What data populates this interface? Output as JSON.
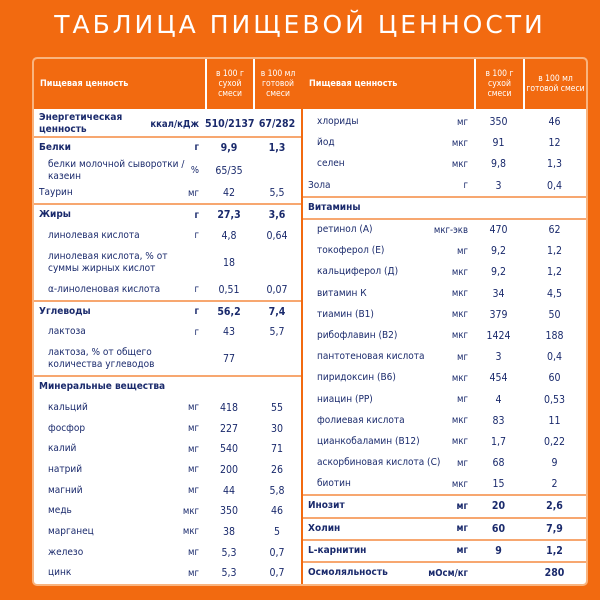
{
  "title": "ТАБЛИЦА ПИЩЕВОЙ ЦЕННОСТИ",
  "header": {
    "name": "Пищевая ценность",
    "col1": "в 100 г сухой смеси",
    "col2": "в 100 мл готовой смеси"
  },
  "colors": {
    "background": "#f26a10",
    "text": "#1a2a6c",
    "separator": "#f7a770"
  },
  "left": [
    {
      "t": "bold",
      "sep": "b",
      "n": "Энергетическая ценность",
      "u": "ккал/кДж",
      "v1": "510/2137",
      "v2": "67/282"
    },
    {
      "t": "bold",
      "n": "Белки",
      "u": "г",
      "v1": "9,9",
      "v2": "1,3"
    },
    {
      "t": "item",
      "n": "белки молочной сыворотки / казеин",
      "u": "%",
      "v1": "65/35",
      "v2": ""
    },
    {
      "t": "plain",
      "sep": "b",
      "n": "Таурин",
      "u": "мг",
      "v1": "42",
      "v2": "5,5"
    },
    {
      "t": "bold",
      "n": "Жиры",
      "u": "г",
      "v1": "27,3",
      "v2": "3,6"
    },
    {
      "t": "item",
      "n": "линолевая кислота",
      "u": "г",
      "v1": "4,8",
      "v2": "0,64"
    },
    {
      "t": "item",
      "dbl": true,
      "n": "линолевая кислота, % от суммы жирных кислот",
      "u": "",
      "v1": "18",
      "v2": ""
    },
    {
      "t": "item",
      "sep": "b",
      "n": "α-линоленовая кислота",
      "u": "г",
      "v1": "0,51",
      "v2": "0,07"
    },
    {
      "t": "bold",
      "n": "Углеводы",
      "u": "г",
      "v1": "56,2",
      "v2": "7,4"
    },
    {
      "t": "item",
      "n": "лактоза",
      "u": "г",
      "v1": "43",
      "v2": "5,7"
    },
    {
      "t": "item",
      "dbl": true,
      "sep": "b",
      "n": "лактоза, % от общего количества углеводов",
      "u": "",
      "v1": "77",
      "v2": ""
    },
    {
      "t": "bold",
      "n": "Минеральные вещества",
      "u": "",
      "v1": "",
      "v2": ""
    },
    {
      "t": "item",
      "n": "кальций",
      "u": "мг",
      "v1": "418",
      "v2": "55"
    },
    {
      "t": "item",
      "n": "фосфор",
      "u": "мг",
      "v1": "227",
      "v2": "30"
    },
    {
      "t": "item",
      "n": "калий",
      "u": "мг",
      "v1": "540",
      "v2": "71"
    },
    {
      "t": "item",
      "n": "натрий",
      "u": "мг",
      "v1": "200",
      "v2": "26"
    },
    {
      "t": "item",
      "n": "магний",
      "u": "мг",
      "v1": "44",
      "v2": "5,8"
    },
    {
      "t": "item",
      "n": "медь",
      "u": "мкг",
      "v1": "350",
      "v2": "46"
    },
    {
      "t": "item",
      "n": "марганец",
      "u": "мкг",
      "v1": "38",
      "v2": "5"
    },
    {
      "t": "item",
      "n": "железо",
      "u": "мг",
      "v1": "5,3",
      "v2": "0,7"
    },
    {
      "t": "item",
      "n": "цинк",
      "u": "мг",
      "v1": "5,3",
      "v2": "0,7"
    }
  ],
  "right": [
    {
      "t": "item",
      "n": "хлориды",
      "u": "мг",
      "v1": "350",
      "v2": "46"
    },
    {
      "t": "item",
      "n": "йод",
      "u": "мкг",
      "v1": "91",
      "v2": "12"
    },
    {
      "t": "item",
      "n": "селен",
      "u": "мкг",
      "v1": "9,8",
      "v2": "1,3"
    },
    {
      "t": "plain",
      "sep": "b",
      "n": "Зола",
      "u": "г",
      "v1": "3",
      "v2": "0,4"
    },
    {
      "t": "bold",
      "sep": "b",
      "n": "Витамины",
      "u": "",
      "v1": "",
      "v2": ""
    },
    {
      "t": "item",
      "n": "ретинол (А)",
      "u": "мкг-экв",
      "v1": "470",
      "v2": "62"
    },
    {
      "t": "item",
      "n": "токоферол (Е)",
      "u": "мг",
      "v1": "9,2",
      "v2": "1,2"
    },
    {
      "t": "item",
      "n": "кальциферол (Д)",
      "u": "мкг",
      "v1": "9,2",
      "v2": "1,2"
    },
    {
      "t": "item",
      "n": "витамин К",
      "u": "мкг",
      "v1": "34",
      "v2": "4,5"
    },
    {
      "t": "item",
      "n": "тиамин (В1)",
      "u": "мкг",
      "v1": "379",
      "v2": "50"
    },
    {
      "t": "item",
      "n": "рибофлавин (В2)",
      "u": "мкг",
      "v1": "1424",
      "v2": "188"
    },
    {
      "t": "item",
      "n": "пантотеновая кислота",
      "u": "мг",
      "v1": "3",
      "v2": "0,4"
    },
    {
      "t": "item",
      "n": "пиридоксин (В6)",
      "u": "мкг",
      "v1": "454",
      "v2": "60"
    },
    {
      "t": "item",
      "n": "ниацин (РР)",
      "u": "мг",
      "v1": "4",
      "v2": "0,53"
    },
    {
      "t": "item",
      "n": "фолиевая кислота",
      "u": "мкг",
      "v1": "83",
      "v2": "11"
    },
    {
      "t": "item",
      "n": "цианкобаламин (В12)",
      "u": "мкг",
      "v1": "1,7",
      "v2": "0,22"
    },
    {
      "t": "item",
      "n": "аскорбиновая кислота (С)",
      "u": "мг",
      "v1": "68",
      "v2": "9"
    },
    {
      "t": "item",
      "sep": "b",
      "n": "биотин",
      "u": "мкг",
      "v1": "15",
      "v2": "2"
    },
    {
      "t": "bold",
      "sep": "b",
      "n": "Инозит",
      "u": "мг",
      "v1": "20",
      "v2": "2,6"
    },
    {
      "t": "bold",
      "sep": "b",
      "n": "Холин",
      "u": "мг",
      "v1": "60",
      "v2": "7,9"
    },
    {
      "t": "bold",
      "sep": "b",
      "n": "L-карнитин",
      "u": "мг",
      "v1": "9",
      "v2": "1,2"
    },
    {
      "t": "bold",
      "n": "Осмоляльность",
      "u": "мОсм/кг",
      "v1": "",
      "v2": "280"
    }
  ]
}
